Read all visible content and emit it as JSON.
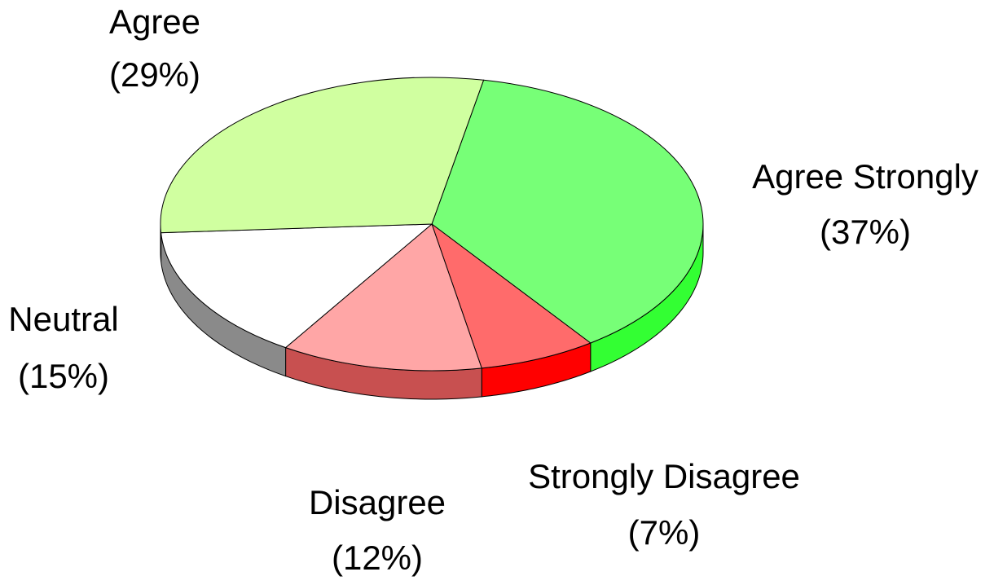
{
  "chart_data": {
    "type": "pie3d",
    "categories": [
      "Agree Strongly",
      "Strongly Disagree",
      "Disagree",
      "Neutral",
      "Agree"
    ],
    "values": [
      37,
      7,
      12,
      15,
      29
    ],
    "value_labels": [
      "(37%)",
      "(7%)",
      "(12%)",
      "(15%)",
      "(29%)"
    ],
    "colors": [
      "#77ff77",
      "#ff6b6b",
      "#ffa6a6",
      "#ffffff",
      "#d0ffa0"
    ],
    "side_colors": [
      "#33ff33",
      "#ff0000",
      "#c85050",
      "#8a8a8a",
      "#a8e070"
    ]
  }
}
